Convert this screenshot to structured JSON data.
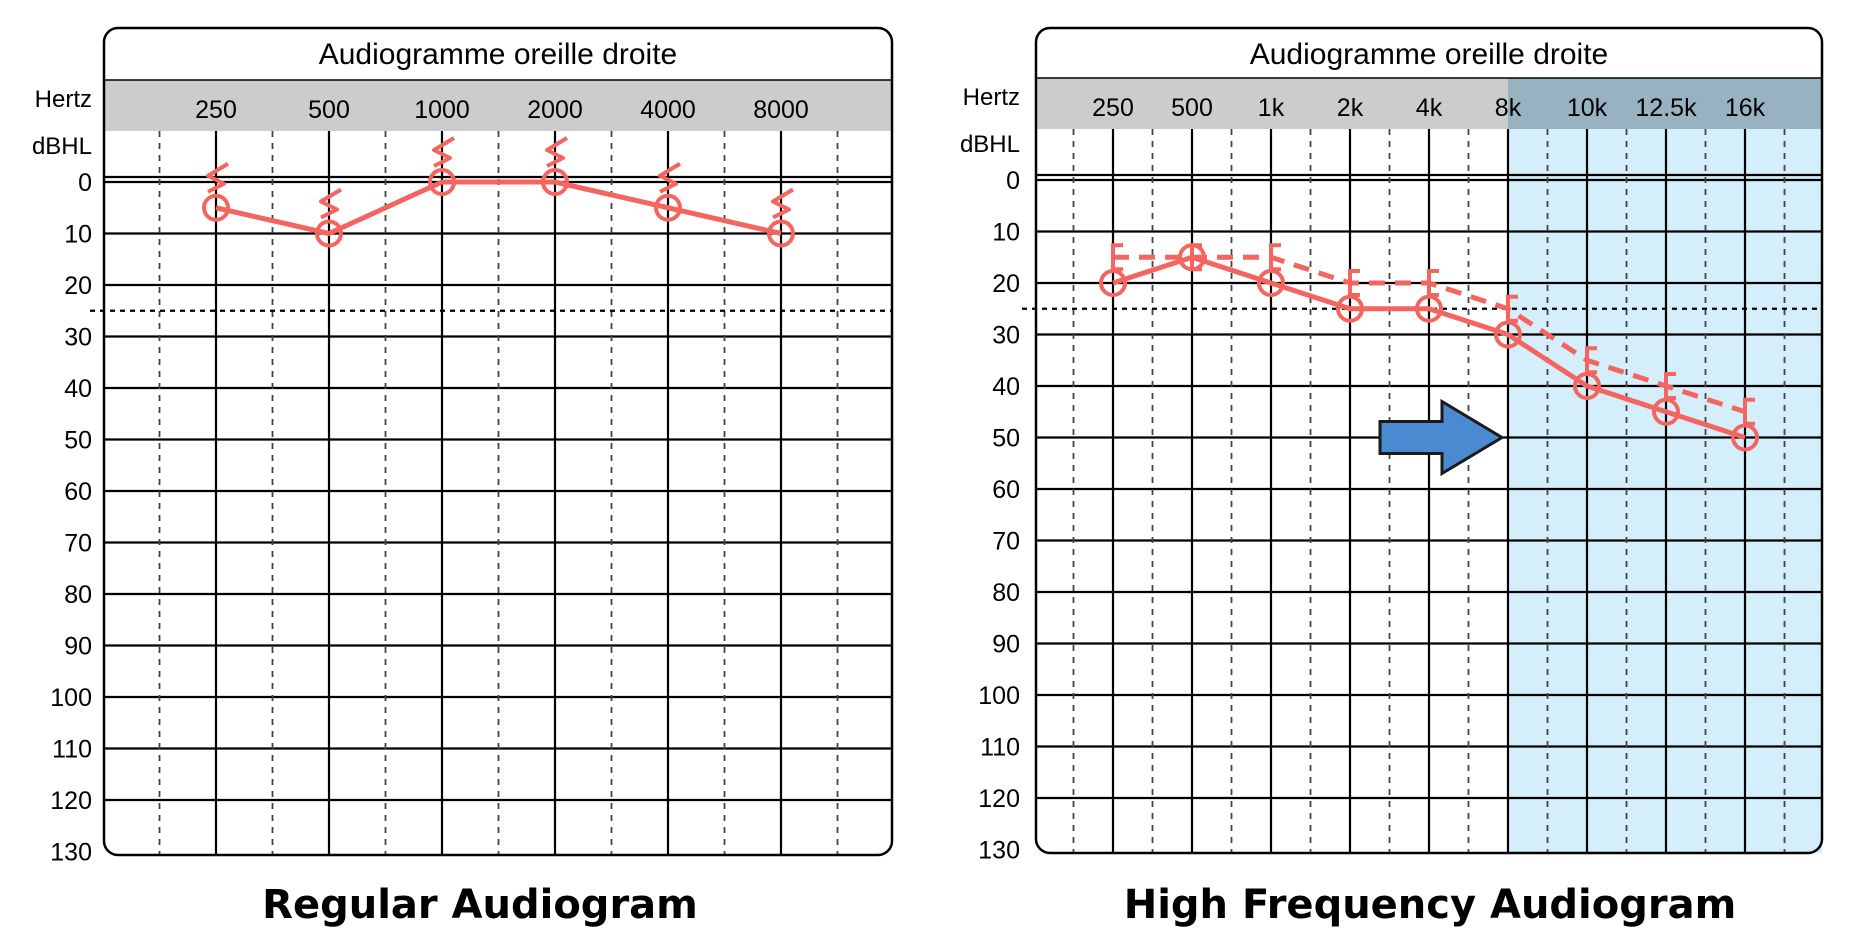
{
  "colors": {
    "series": "#f4655f",
    "panel_header": "#cccccc",
    "hf_region": "#d5eefb",
    "arrow_fill": "#4a8ad0",
    "arrow_stroke": "#1a1a1a",
    "grid": "#000000"
  },
  "captions": {
    "left": "Regular Audiogram",
    "right": "High Frequency Audiogram"
  },
  "chart_data": [
    {
      "type": "line",
      "title": "Audiogramme oreille droite",
      "xlabel": "Hertz",
      "ylabel": "dBHL",
      "x_ticks": [
        "250",
        "500",
        "1000",
        "2000",
        "4000",
        "8000"
      ],
      "y_ticks": [
        0,
        10,
        20,
        30,
        40,
        50,
        60,
        70,
        80,
        90,
        100,
        110,
        120,
        130
      ],
      "ylim": [
        0,
        130
      ],
      "y_inverted": true,
      "grid": true,
      "reference_line_db": 25,
      "series": [
        {
          "marker": "circle",
          "line": "solid",
          "values": [
            5,
            10,
            0,
            0,
            5,
            10
          ]
        }
      ],
      "masking_markers": {
        "symbol": "zigzag",
        "x": [
          "250",
          "500",
          "1000",
          "2000",
          "4000",
          "8000"
        ]
      }
    },
    {
      "type": "line",
      "title": "Audiogramme oreille droite",
      "xlabel": "Hertz",
      "ylabel": "dBHL",
      "x_ticks": [
        "250",
        "500",
        "1k",
        "2k",
        "4k",
        "8k",
        "10k",
        "12.5k",
        "16k"
      ],
      "y_ticks": [
        0,
        10,
        20,
        30,
        40,
        50,
        60,
        70,
        80,
        90,
        100,
        110,
        120,
        130
      ],
      "ylim": [
        0,
        130
      ],
      "y_inverted": true,
      "grid": true,
      "reference_line_db": 25,
      "highlight_region": {
        "from": "8k",
        "to": "16k"
      },
      "arrow_annotation": {
        "points_to_x": "8k",
        "at_y": 50
      },
      "series": [
        {
          "marker": "circle",
          "line": "solid",
          "values": [
            20,
            15,
            20,
            25,
            25,
            30,
            40,
            45,
            50
          ]
        },
        {
          "marker": "bracket",
          "line": "dashed",
          "values": [
            15,
            15,
            15,
            20,
            20,
            25,
            35,
            40,
            45
          ]
        }
      ]
    }
  ]
}
